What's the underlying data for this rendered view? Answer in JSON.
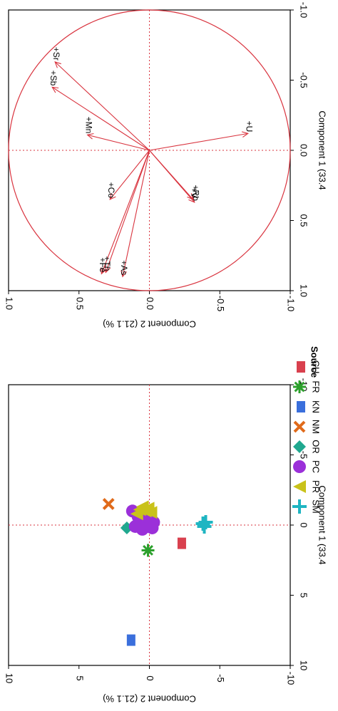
{
  "chart_data": [
    {
      "type": "scatter",
      "panel": "loadings",
      "xlabel": "Component 1  (33.4",
      "ylabel": "Component 2  (21.1 %)",
      "xlim": [
        -1.0,
        1.0
      ],
      "ylim": [
        -1.0,
        1.0
      ],
      "x_ticks": [
        "-1.0",
        "-0.5",
        "0.0",
        "0.5",
        "1.0"
      ],
      "y_ticks": [
        "-1.0",
        "-0.5",
        "0.0",
        "0.5",
        "1.0"
      ],
      "unit_circle": true,
      "reference_lines": "dotted at 0",
      "colors": {
        "vectors": "#d9343f",
        "reference": "#d9343f"
      },
      "variables": [
        {
          "name": "Fe",
          "x": 0.88,
          "y": 0.34
        },
        {
          "name": "Th",
          "x": 0.87,
          "y": 0.31
        },
        {
          "name": "As",
          "x": 0.9,
          "y": 0.19
        },
        {
          "name": "Co",
          "x": 0.35,
          "y": 0.28
        },
        {
          "name": "Rb",
          "x": 0.37,
          "y": -0.32
        },
        {
          "name": "V",
          "x": 0.35,
          "y": -0.31
        },
        {
          "name": "Mn",
          "x": -0.11,
          "y": 0.44
        },
        {
          "name": "U",
          "x": -0.12,
          "y": -0.7
        },
        {
          "name": "Sb",
          "x": -0.45,
          "y": 0.69
        },
        {
          "name": "Sr",
          "x": -0.63,
          "y": 0.67
        }
      ]
    },
    {
      "type": "scatter",
      "panel": "scores",
      "xlabel": "Component 1  (33.4",
      "ylabel": "Component 2  (21.1 %)",
      "xlim": [
        -10,
        10
      ],
      "ylim": [
        -10,
        10
      ],
      "x_ticks": [
        "-10",
        "-5",
        "0",
        "5",
        "10"
      ],
      "y_ticks": [
        "-10",
        "-5",
        "0",
        "5",
        "10"
      ],
      "reference_lines": "dotted at 0",
      "legend": {
        "title": "Source",
        "placement": "top"
      },
      "series": [
        {
          "name": "CU",
          "marker": "square",
          "color": "#d9404e",
          "points": [
            [
              1.3,
              -2.2
            ]
          ]
        },
        {
          "name": "FR",
          "marker": "asterisk",
          "color": "#2ca02c",
          "points": [
            [
              1.8,
              0.1
            ]
          ]
        },
        {
          "name": "KN",
          "marker": "square",
          "color": "#3a6fdc",
          "points": [
            [
              8.2,
              1.4
            ]
          ]
        },
        {
          "name": "NM",
          "marker": "cross",
          "color": "#e06a1a",
          "points": [
            [
              -1.5,
              2.9
            ]
          ]
        },
        {
          "name": "OR",
          "marker": "diamond",
          "color": "#20a88f",
          "points": [
            [
              0.2,
              1.6
            ]
          ]
        },
        {
          "name": "PC",
          "marker": "circle",
          "color": "#9b30d9",
          "points": [
            [
              0.1,
              0.1
            ],
            [
              -0.4,
              0.3
            ],
            [
              -0.8,
              0.4
            ],
            [
              -0.2,
              -0.3
            ],
            [
              0.3,
              0.5
            ],
            [
              -1.0,
              1.2
            ],
            [
              -0.6,
              0.8
            ],
            [
              0.1,
              1.0
            ],
            [
              -0.3,
              -0.1
            ],
            [
              0.2,
              -0.2
            ]
          ]
        },
        {
          "name": "PR",
          "marker": "triangle",
          "color": "#c9c21a",
          "points": [
            [
              -1.1,
              0.7
            ],
            [
              -1.0,
              0.3
            ],
            [
              -1.3,
              0.5
            ],
            [
              -0.8,
              0.9
            ],
            [
              -1.2,
              0.1
            ],
            [
              -0.9,
              -0.1
            ]
          ]
        },
        {
          "name": "SM",
          "marker": "plus",
          "color": "#1fb5c2",
          "points": [
            [
              0.1,
              -3.9
            ],
            [
              -0.2,
              -4.0
            ],
            [
              -0.1,
              -3.8
            ]
          ]
        }
      ]
    }
  ]
}
